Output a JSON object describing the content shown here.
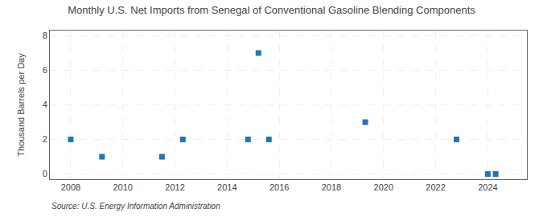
{
  "chart_data": {
    "type": "scatter",
    "title": "Monthly U.S. Net Imports from Senegal of Conventional Gasoline Blending Components",
    "ylabel": "Thousand Barrels per Day",
    "annotations": [
      "Source: U.S. Energy Information Administration"
    ],
    "marker": "square",
    "x": [
      2008.0,
      2009.2,
      2011.5,
      2012.3,
      2014.8,
      2015.2,
      2015.6,
      2019.3,
      2022.8,
      2024.0,
      2024.3
    ],
    "values": [
      2.0,
      1.0,
      1.0,
      2.0,
      2.0,
      7.0,
      2.0,
      3.0,
      2.0,
      0.0,
      0.0
    ],
    "xlim": [
      2007.2,
      2025.5
    ],
    "xticks": [
      2008,
      2010,
      2012,
      2014,
      2016,
      2018,
      2020,
      2022,
      2024
    ],
    "ylim": [
      -0.3,
      8.3
    ],
    "yticks": [
      0,
      2,
      4,
      6,
      8
    ],
    "grid": true
  }
}
